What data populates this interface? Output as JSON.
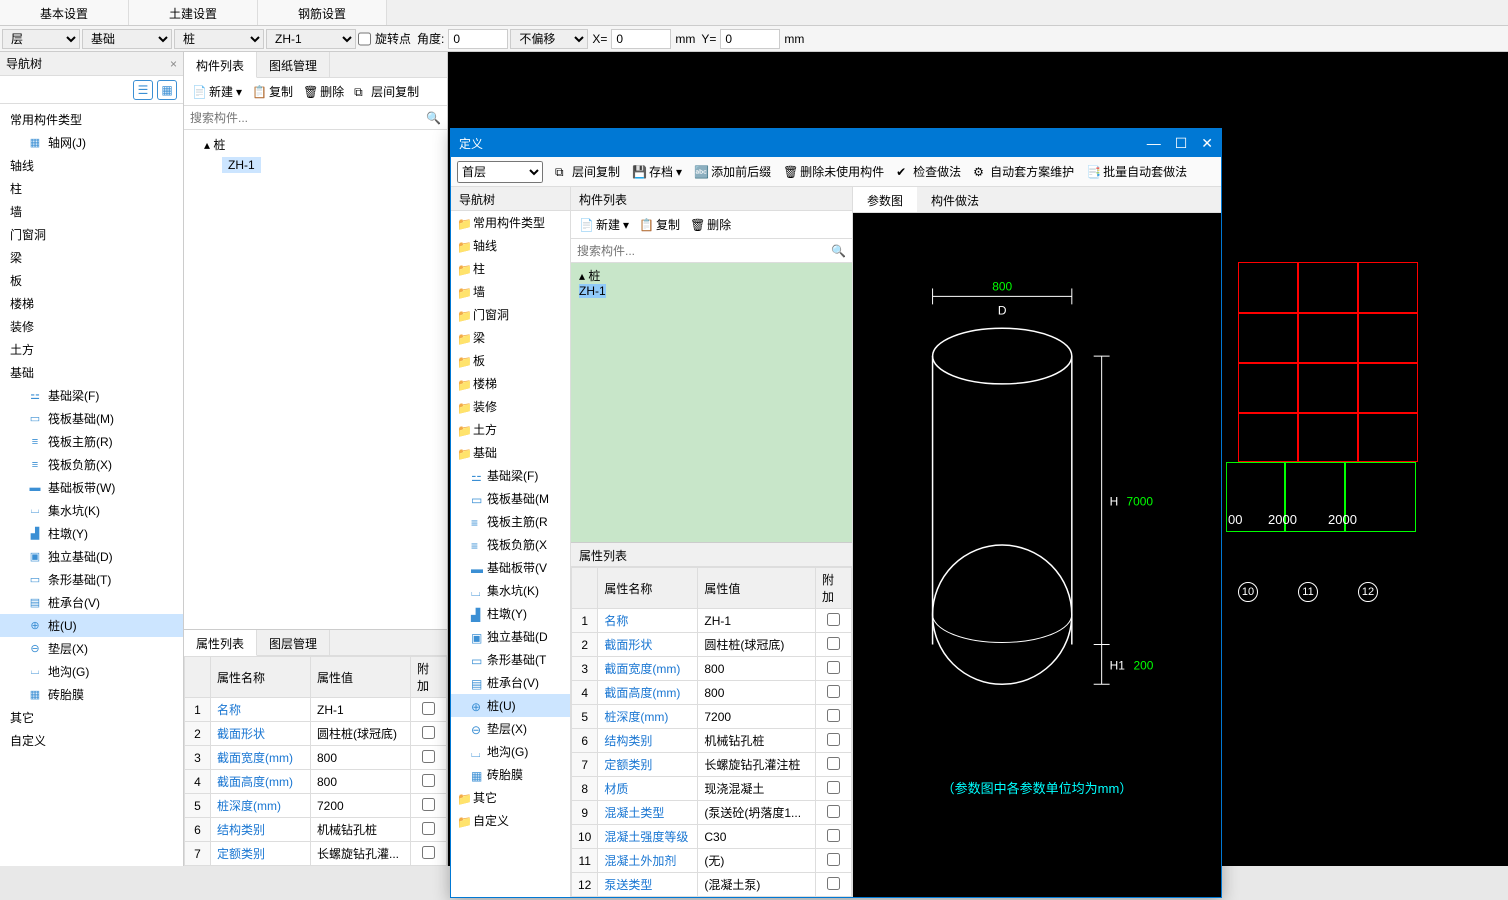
{
  "top_tabs": {
    "basic": "基本设置",
    "build": "土建设置",
    "rebar": "钢筋设置"
  },
  "toolbar": {
    "layer": "层",
    "foundation": "基础",
    "pile": "桩",
    "code": "ZH-1",
    "rotate_label": "旋转点",
    "angle_label": "角度:",
    "angle": "0",
    "offset_label": "不偏移",
    "x_label": "X=",
    "x": "0",
    "mm_label": "mm",
    "y_label": "Y=",
    "y": "0",
    "mm2": "mm"
  },
  "left_nav": {
    "title": "导航树",
    "groups": {
      "common": "常用构件类型",
      "axis_grid": "轴网(J)",
      "axis": "轴线",
      "column": "柱",
      "wall": "墙",
      "opening": "门窗洞",
      "beam": "梁",
      "slab": "板",
      "stair": "楼梯",
      "decor": "装修",
      "earth": "土方",
      "foundation": "基础",
      "fb": "基础梁(F)",
      "fr": "筏板基础(M)",
      "fm": "筏板主筋(R)",
      "fn": "筏板负筋(X)",
      "fs": "基础板带(W)",
      "pit": "集水坑(K)",
      "pier": "柱墩(Y)",
      "iso": "独立基础(D)",
      "strip": "条形基础(T)",
      "cap": "桩承台(V)",
      "pile": "桩(U)",
      "cushion": "垫层(X)",
      "trench": "地沟(G)",
      "brick": "砖胎膜",
      "other": "其它",
      "custom": "自定义"
    }
  },
  "comp_panel": {
    "tab1": "构件列表",
    "tab2": "图纸管理",
    "new": "新建",
    "copy": "复制",
    "delete": "删除",
    "floor_copy": "层间复制",
    "search_ph": "搜索构件...",
    "root": "桩",
    "item": "ZH-1"
  },
  "props": {
    "tab1": "属性列表",
    "tab2": "图层管理",
    "col1": "属性名称",
    "col2": "属性值",
    "col3": "附加",
    "rows": [
      {
        "n": "1",
        "k": "名称",
        "v": "ZH-1"
      },
      {
        "n": "2",
        "k": "截面形状",
        "v": "圆柱桩(球冠底)"
      },
      {
        "n": "3",
        "k": "截面宽度(mm)",
        "v": "800"
      },
      {
        "n": "4",
        "k": "截面高度(mm)",
        "v": "800"
      },
      {
        "n": "5",
        "k": "桩深度(mm)",
        "v": "7200"
      },
      {
        "n": "6",
        "k": "结构类别",
        "v": "机械钻孔桩"
      },
      {
        "n": "7",
        "k": "定额类别",
        "v": "长螺旋钻孔灌..."
      }
    ]
  },
  "dialog": {
    "title": "定义",
    "floor": "首层",
    "tb": {
      "floor_copy": "层间复制",
      "save": "存档",
      "prefix": "添加前后缀",
      "del_unused": "删除未使用构件",
      "check": "检查做法",
      "auto": "自动套方案维护",
      "batch": "批量自动套做法"
    },
    "nav_title": "导航树",
    "comp_title": "构件列表",
    "right_tab1": "参数图",
    "right_tab2": "构件做法",
    "props_title": "属性列表",
    "props_cols": {
      "c1": "属性名称",
      "c2": "属性值",
      "c3": "附加"
    },
    "props_rows": [
      {
        "n": "1",
        "k": "名称",
        "v": "ZH-1"
      },
      {
        "n": "2",
        "k": "截面形状",
        "v": "圆柱桩(球冠底)"
      },
      {
        "n": "3",
        "k": "截面宽度(mm)",
        "v": "800"
      },
      {
        "n": "4",
        "k": "截面高度(mm)",
        "v": "800"
      },
      {
        "n": "5",
        "k": "桩深度(mm)",
        "v": "7200"
      },
      {
        "n": "6",
        "k": "结构类别",
        "v": "机械钻孔桩"
      },
      {
        "n": "7",
        "k": "定额类别",
        "v": "长螺旋钻孔灌注桩"
      },
      {
        "n": "8",
        "k": "材质",
        "v": "现浇混凝土"
      },
      {
        "n": "9",
        "k": "混凝土类型",
        "v": "(泵送砼(坍落度1..."
      },
      {
        "n": "10",
        "k": "混凝土强度等级",
        "v": "C30"
      },
      {
        "n": "11",
        "k": "混凝土外加剂",
        "v": "(无)"
      },
      {
        "n": "12",
        "k": "泵送类型",
        "v": "(混凝土泵)"
      }
    ],
    "diagram": {
      "D_label": "D",
      "D_val": "800",
      "H_label": "H",
      "H_val": "7000",
      "H1_label": "H1",
      "H1_val": "200",
      "note": "（参数图中各参数单位均为mm）"
    }
  },
  "canvas": {
    "dims": [
      "00",
      "2000",
      "2000"
    ],
    "nodes": [
      "10",
      "11",
      "12"
    ]
  }
}
